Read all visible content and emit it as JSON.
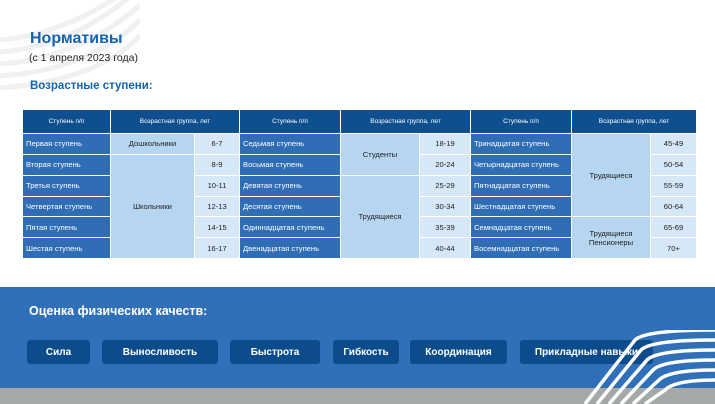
{
  "header": {
    "title": "Нормативы",
    "subtitle": "(с 1 апреля 2023 года)",
    "section": "Возрастные ступени:"
  },
  "table": {
    "headers": {
      "step": "Ступень п/п",
      "group": "Возрастная группа, лет"
    },
    "steps": [
      "Первая ступень",
      "Вторая ступень",
      "Третья ступень",
      "Четвертая ступень",
      "Пятая ступень",
      "Шестая ступень",
      "Седьмая ступень",
      "Восьмая ступень",
      "Девятая ступень",
      "Десятая ступень",
      "Одиннадцатая ступень",
      "Двенадцатая ступень",
      "Тринадцатая ступень",
      "Четырнадцатая ступень",
      "Пятнадцатая ступень",
      "Шестнадцатая ступень",
      "Семнадцатая ступень",
      "Восемнадцатая ступень"
    ],
    "ages": [
      "6-7",
      "8-9",
      "10-11",
      "12-13",
      "14-15",
      "16-17",
      "18-19",
      "20-24",
      "25-29",
      "30-34",
      "35-39",
      "40-44",
      "45-49",
      "50-54",
      "55-59",
      "60-64",
      "65-69",
      "70+"
    ],
    "groups": {
      "preschool": "Дошкольники",
      "school": "Школьники",
      "students": "Студенты",
      "workers": "Трудящиеся",
      "workers2": "Трудящиеся",
      "pensioners": "Трудящиеся Пенсионеры"
    }
  },
  "qualities": {
    "title": "Оценка физических качеств:",
    "items": [
      "Сила",
      "Выносливость",
      "Быстрота",
      "Гибкость",
      "Координация",
      "Прикладные навыки"
    ]
  }
}
